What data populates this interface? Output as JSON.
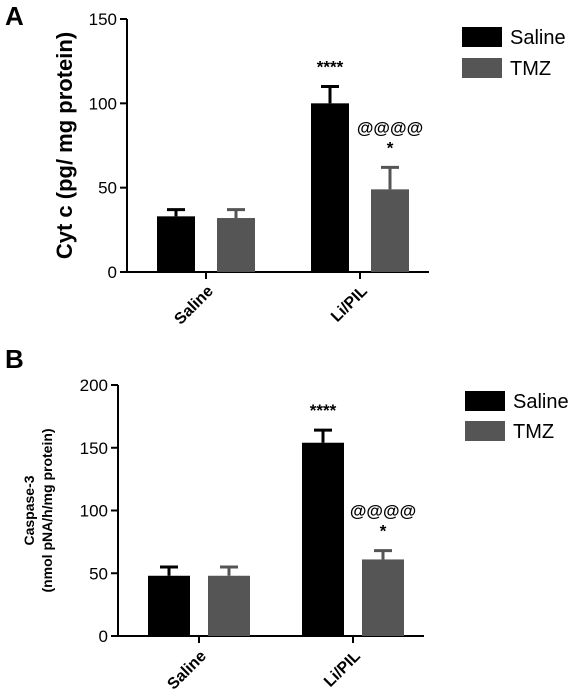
{
  "chart_data": [
    {
      "panel": "A",
      "type": "bar",
      "ylabel": "Cyt c (pg/ mg protein)",
      "ylim": [
        0,
        150
      ],
      "yticks": [
        0,
        50,
        100,
        150
      ],
      "categories": [
        "Saline",
        "Li/PIL"
      ],
      "series": [
        {
          "name": "Saline",
          "color": "#000000",
          "values": [
            33,
            100
          ],
          "errors": [
            4,
            10
          ]
        },
        {
          "name": "TMZ",
          "color": "#555555",
          "values": [
            32,
            49
          ],
          "errors": [
            5,
            13
          ]
        }
      ],
      "legend": "top-right",
      "annotations": [
        {
          "category": 1,
          "series": 0,
          "lines": [
            "****"
          ]
        },
        {
          "category": 1,
          "series": 1,
          "lines": [
            "@@@@",
            "*"
          ]
        }
      ]
    },
    {
      "panel": "B",
      "type": "bar",
      "ylabel_lines": [
        "Caspase-3",
        "(nmol pNA/h/mg protein)"
      ],
      "ylim": [
        0,
        200
      ],
      "yticks": [
        0,
        50,
        100,
        150,
        200
      ],
      "categories": [
        "Saline",
        "Li/PIL"
      ],
      "series": [
        {
          "name": "Saline",
          "color": "#000000",
          "values": [
            48,
            154
          ],
          "errors": [
            7,
            10
          ]
        },
        {
          "name": "TMZ",
          "color": "#555555",
          "values": [
            48,
            61
          ],
          "errors": [
            7,
            7
          ]
        }
      ],
      "legend": "top-right",
      "annotations": [
        {
          "category": 1,
          "series": 0,
          "lines": [
            "****"
          ]
        },
        {
          "category": 1,
          "series": 1,
          "lines": [
            "@@@@",
            "*"
          ]
        }
      ]
    }
  ]
}
